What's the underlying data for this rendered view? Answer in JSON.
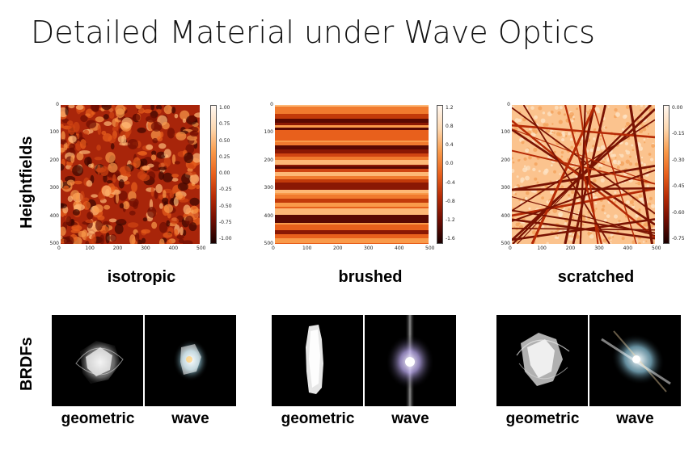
{
  "title": "Detailed Material under Wave Optics",
  "row_labels": {
    "heightfields": "Heightfields",
    "brdfs": "BRDFs"
  },
  "materials": [
    {
      "name": "isotropic",
      "y_ticks": [
        "0",
        "100",
        "200",
        "300",
        "400",
        "500"
      ],
      "x_ticks": [
        "0",
        "100",
        "200",
        "300",
        "400",
        "500"
      ],
      "colorbar_ticks": [
        "1.00",
        "0.75",
        "0.50",
        "0.25",
        "0.00",
        "-0.25",
        "-0.50",
        "-0.75",
        "-1.00"
      ]
    },
    {
      "name": "brushed",
      "y_ticks": [
        "0",
        "100",
        "200",
        "300",
        "400",
        "500"
      ],
      "x_ticks": [
        "0",
        "100",
        "200",
        "300",
        "400",
        "500"
      ],
      "colorbar_ticks": [
        "1.2",
        "0.8",
        "0.4",
        "0.0",
        "-0.4",
        "-0.8",
        "-1.2",
        "-1.6"
      ]
    },
    {
      "name": "scratched",
      "y_ticks": [
        "0",
        "100",
        "200",
        "300",
        "400",
        "500"
      ],
      "x_ticks": [
        "0",
        "100",
        "200",
        "300",
        "400",
        "500"
      ],
      "colorbar_ticks": [
        "0.00",
        "-0.15",
        "-0.30",
        "-0.45",
        "-0.60",
        "-0.75"
      ]
    }
  ],
  "brdf_labels": {
    "geometric": "geometric",
    "wave": "wave"
  }
}
